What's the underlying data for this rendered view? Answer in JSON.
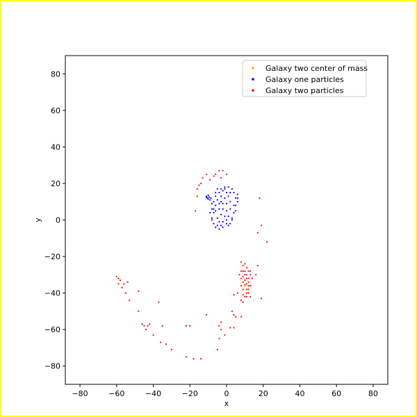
{
  "chart_data": {
    "type": "scatter",
    "title": "",
    "xlabel": "x",
    "ylabel": "y",
    "xlim": [
      -88,
      88
    ],
    "ylim": [
      -90,
      90
    ],
    "xticks": [
      -80,
      -60,
      -40,
      -20,
      0,
      20,
      40,
      60,
      80
    ],
    "yticks": [
      -80,
      -60,
      -40,
      -20,
      0,
      20,
      40,
      60,
      80
    ],
    "grid": false,
    "legend_position": "top-right",
    "series": [
      {
        "name": "Galaxy two center of mass",
        "color": "#ffa500",
        "points": [
          [
            10,
            -35.5
          ]
        ]
      },
      {
        "name": "Galaxy one particles",
        "color": "#0000ff",
        "points": [
          [
            -11,
            13
          ],
          [
            -10.5,
            12
          ],
          [
            -10,
            11.5
          ],
          [
            -9.5,
            12.5
          ],
          [
            -10,
            13.5
          ],
          [
            -9,
            11
          ],
          [
            -11,
            12.5
          ],
          [
            -8.5,
            12
          ],
          [
            -9,
            4
          ],
          [
            -8,
            1
          ],
          [
            -7,
            -2
          ],
          [
            -6,
            -4
          ],
          [
            -4,
            -5
          ],
          [
            -2,
            -4
          ],
          [
            0,
            -2
          ],
          [
            1,
            2
          ],
          [
            2,
            6
          ],
          [
            2,
            10
          ],
          [
            1,
            13
          ],
          [
            0,
            15
          ],
          [
            -2,
            16
          ],
          [
            -4,
            15
          ],
          [
            -6,
            13
          ],
          [
            -7,
            10
          ],
          [
            -7,
            6
          ],
          [
            -6,
            5
          ],
          [
            -5,
            1
          ],
          [
            -4,
            -1
          ],
          [
            -2,
            -1
          ],
          [
            -1,
            2
          ],
          [
            0,
            5
          ],
          [
            0,
            9
          ],
          [
            -1,
            12
          ],
          [
            -3,
            13
          ],
          [
            -5,
            11
          ],
          [
            -6,
            8
          ],
          [
            -4,
            6
          ],
          [
            -3,
            3
          ],
          [
            -2,
            6
          ],
          [
            -2,
            9
          ],
          [
            -3,
            10
          ],
          [
            -4,
            9
          ],
          [
            3,
            17
          ],
          [
            4,
            15
          ],
          [
            5,
            12
          ],
          [
            5,
            8
          ],
          [
            4,
            4
          ],
          [
            3,
            0
          ],
          [
            2,
            -2
          ],
          [
            5,
            5
          ],
          [
            6,
            10
          ],
          [
            6,
            14
          ],
          [
            1,
            18
          ],
          [
            -1,
            18
          ],
          [
            -3,
            17
          ],
          [
            -5,
            17
          ],
          [
            -8,
            6
          ],
          [
            -8,
            0
          ],
          [
            -7,
            4
          ],
          [
            3,
            1
          ],
          [
            4,
            8
          ],
          [
            2,
            15
          ],
          [
            -1,
            17
          ],
          [
            -6,
            15
          ],
          [
            -8,
            9
          ],
          [
            -5,
            -3
          ],
          [
            -3,
            -3
          ],
          [
            0,
            0
          ],
          [
            1,
            -3
          ],
          [
            6,
            12
          ]
        ]
      },
      {
        "name": "Galaxy two particles",
        "color": "#ff0000",
        "points": [
          [
            -13,
            23
          ],
          [
            -11,
            25
          ],
          [
            -9,
            22
          ],
          [
            -7,
            24
          ],
          [
            -15,
            19
          ],
          [
            -16,
            17
          ],
          [
            -14,
            20
          ],
          [
            -6,
            25
          ],
          [
            -3,
            23
          ],
          [
            -2,
            27
          ],
          [
            0,
            25
          ],
          [
            -4,
            27
          ],
          [
            -16,
            13
          ],
          [
            -17,
            5
          ],
          [
            18,
            12
          ],
          [
            19,
            -3
          ],
          [
            22,
            -12
          ],
          [
            17,
            -7
          ],
          [
            8,
            -23
          ],
          [
            9,
            -25
          ],
          [
            10,
            -24
          ],
          [
            11,
            -26
          ],
          [
            12,
            -28
          ],
          [
            13,
            -30
          ],
          [
            14,
            -32
          ],
          [
            9,
            -28
          ],
          [
            10,
            -30
          ],
          [
            11,
            -32
          ],
          [
            12,
            -34
          ],
          [
            13,
            -36
          ],
          [
            9,
            -34
          ],
          [
            10,
            -36
          ],
          [
            11,
            -38
          ],
          [
            12,
            -40
          ],
          [
            13,
            -42
          ],
          [
            10,
            -42
          ],
          [
            11,
            -40
          ],
          [
            12,
            -36
          ],
          [
            9,
            -38
          ],
          [
            8,
            -32
          ],
          [
            8,
            -36
          ],
          [
            7,
            -30
          ],
          [
            11,
            -30
          ],
          [
            12,
            -32
          ],
          [
            10,
            -33
          ],
          [
            11,
            -35
          ],
          [
            9,
            -31
          ],
          [
            12,
            -38
          ],
          [
            8,
            -28
          ],
          [
            13,
            -28
          ],
          [
            10,
            -28
          ],
          [
            11,
            -42
          ],
          [
            9,
            -41
          ],
          [
            6,
            -40
          ],
          [
            4,
            -41
          ],
          [
            16,
            -30
          ],
          [
            17,
            -25
          ],
          [
            19,
            -43
          ],
          [
            8,
            -44
          ],
          [
            9,
            -45
          ],
          [
            8,
            -53
          ],
          [
            5,
            -53
          ],
          [
            -60,
            -31
          ],
          [
            -59,
            -32
          ],
          [
            -58,
            -33
          ],
          [
            -59,
            -35
          ],
          [
            -57,
            -37
          ],
          [
            -56,
            -35
          ],
          [
            -54,
            -34
          ],
          [
            -55,
            -40
          ],
          [
            -53,
            -44
          ],
          [
            -48,
            -39
          ],
          [
            -48,
            -50
          ],
          [
            -46,
            -57
          ],
          [
            -45,
            -58
          ],
          [
            -44,
            -60
          ],
          [
            -43,
            -58
          ],
          [
            -42,
            -57
          ],
          [
            -40,
            -63
          ],
          [
            -37,
            -45
          ],
          [
            -35,
            -58
          ],
          [
            -36,
            -67
          ],
          [
            -33,
            -68
          ],
          [
            -30,
            -71
          ],
          [
            -22,
            -58
          ],
          [
            -20,
            -58
          ],
          [
            -22,
            -75
          ],
          [
            -18,
            -76
          ],
          [
            -14,
            -76
          ],
          [
            -11,
            -52
          ],
          [
            -5,
            -71
          ],
          [
            -4,
            -58
          ],
          [
            -4,
            -65
          ],
          [
            -3,
            -60
          ],
          [
            -1,
            -63
          ],
          [
            -3,
            -56
          ],
          [
            3,
            -50
          ],
          [
            4,
            -52
          ],
          [
            2,
            -59
          ],
          [
            4,
            -59
          ]
        ]
      }
    ],
    "legend_order": [
      0,
      1,
      2
    ]
  }
}
